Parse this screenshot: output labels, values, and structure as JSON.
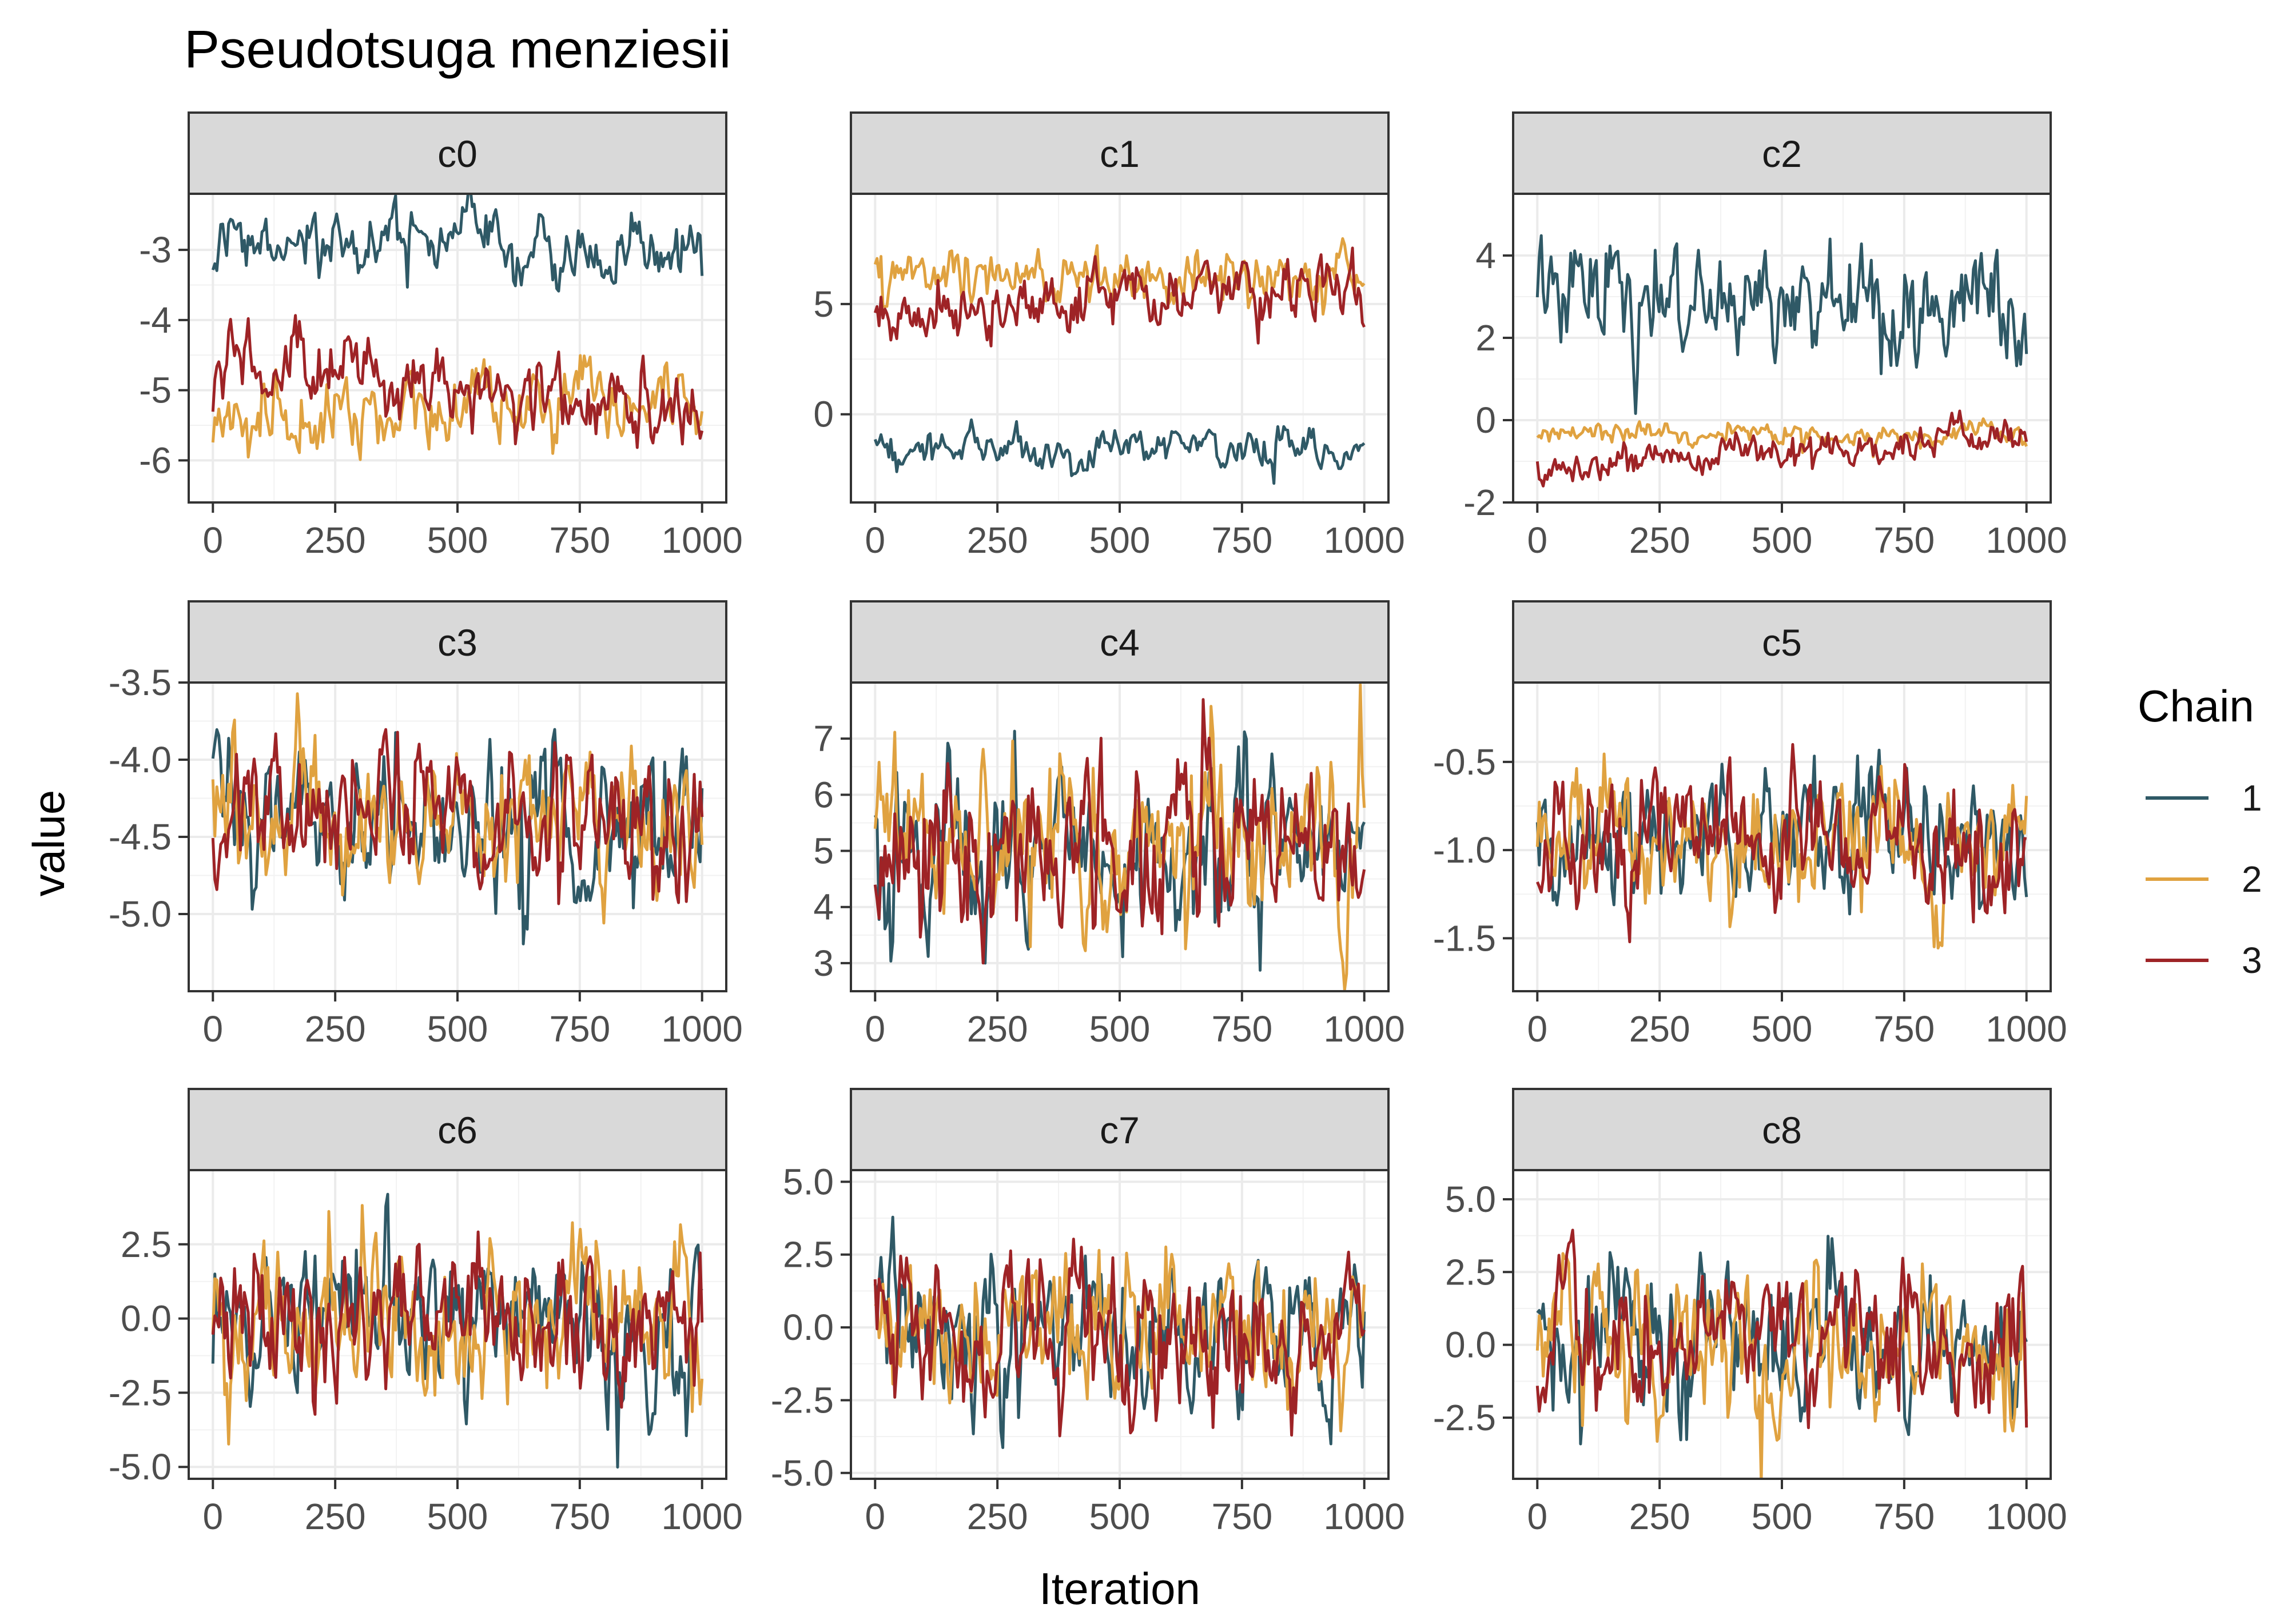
{
  "title": "Pseudotsuga menziesii",
  "x_label": "Iteration",
  "y_label": "value",
  "legend": {
    "title": "Chain",
    "entries": [
      {
        "label": "1",
        "color": "#2F5966"
      },
      {
        "label": "2",
        "color": "#E0A240"
      },
      {
        "label": "3",
        "color": "#9E2326"
      }
    ]
  },
  "chart_data": [
    {
      "type": "line",
      "panel": "c0",
      "x_range": [
        0,
        1000
      ],
      "x_ticks": [
        0,
        250,
        500,
        750,
        1000
      ],
      "ylim": [
        -6.6,
        -2.2
      ],
      "y_ticks": [
        {
          "v": -3,
          "label": "-3"
        },
        {
          "v": -4,
          "label": "-4"
        },
        {
          "v": -5,
          "label": "-5"
        },
        {
          "v": -6,
          "label": "-6"
        }
      ],
      "series": [
        {
          "chain": 1,
          "mean": -3.0,
          "sd": 0.25
        },
        {
          "chain": 2,
          "mean": -5.3,
          "sd": 0.3,
          "trend": [
            -5.4,
            -5.2
          ]
        },
        {
          "chain": 3,
          "mean": -5.0,
          "sd": 0.3,
          "trend": [
            -4.6,
            -5.3
          ]
        }
      ]
    },
    {
      "type": "line",
      "panel": "c1",
      "x_range": [
        0,
        1000
      ],
      "x_ticks": [
        0,
        250,
        500,
        750,
        1000
      ],
      "ylim": [
        -4,
        10
      ],
      "y_ticks": [
        {
          "v": 5,
          "label": "5"
        },
        {
          "v": 0,
          "label": "0"
        }
      ],
      "series": [
        {
          "chain": 1,
          "mean": -1.6,
          "sd": 0.5
        },
        {
          "chain": 2,
          "mean": 6.0,
          "sd": 0.7
        },
        {
          "chain": 3,
          "mean": 5.4,
          "sd": 0.8,
          "trend": [
            4.3,
            6.2
          ]
        }
      ]
    },
    {
      "type": "line",
      "panel": "c2",
      "x_range": [
        0,
        1000
      ],
      "x_ticks": [
        0,
        250,
        500,
        750,
        1000
      ],
      "ylim": [
        -2,
        5.5
      ],
      "y_ticks": [
        {
          "v": 4,
          "label": "4"
        },
        {
          "v": 2,
          "label": "2"
        },
        {
          "v": 0,
          "label": "0"
        },
        {
          "v": -2,
          "label": "-2"
        }
      ],
      "series": [
        {
          "chain": 1,
          "mean": 3.0,
          "sd": 0.8
        },
        {
          "chain": 2,
          "mean": -0.35,
          "sd": 0.15
        },
        {
          "chain": 3,
          "mean": -0.7,
          "sd": 0.25,
          "trend": [
            -1.1,
            -0.4
          ]
        }
      ]
    },
    {
      "type": "line",
      "panel": "c3",
      "x_range": [
        0,
        1000
      ],
      "x_ticks": [
        0,
        250,
        500,
        750,
        1000
      ],
      "ylim": [
        -5.5,
        -3.5
      ],
      "y_ticks": [
        {
          "v": -3.5,
          "label": "-3.5"
        },
        {
          "v": -4.0,
          "label": "-4.0"
        },
        {
          "v": -4.5,
          "label": "-4.5"
        },
        {
          "v": -5.0,
          "label": "-5.0"
        }
      ],
      "series": [
        {
          "chain": 1,
          "mean": -4.35,
          "sd": 0.25
        },
        {
          "chain": 2,
          "mean": -4.35,
          "sd": 0.25
        },
        {
          "chain": 3,
          "mean": -4.35,
          "sd": 0.25
        }
      ]
    },
    {
      "type": "line",
      "panel": "c4",
      "x_range": [
        0,
        1000
      ],
      "x_ticks": [
        0,
        250,
        500,
        750,
        1000
      ],
      "ylim": [
        2.5,
        8.0
      ],
      "y_ticks": [
        {
          "v": 7,
          "label": "7"
        },
        {
          "v": 6,
          "label": "6"
        },
        {
          "v": 5,
          "label": "5"
        },
        {
          "v": 4,
          "label": "4"
        },
        {
          "v": 3,
          "label": "3"
        }
      ],
      "series": [
        {
          "chain": 1,
          "mean": 4.9,
          "sd": 0.8
        },
        {
          "chain": 2,
          "mean": 5.0,
          "sd": 0.8
        },
        {
          "chain": 3,
          "mean": 5.0,
          "sd": 0.8
        }
      ]
    },
    {
      "type": "line",
      "panel": "c5",
      "x_range": [
        0,
        1000
      ],
      "x_ticks": [
        0,
        250,
        500,
        750,
        1000
      ],
      "ylim": [
        -1.8,
        -0.05
      ],
      "y_ticks": [
        {
          "v": -0.5,
          "label": "-0.5"
        },
        {
          "v": -1.0,
          "label": "-1.0"
        },
        {
          "v": -1.5,
          "label": "-1.5"
        }
      ],
      "series": [
        {
          "chain": 1,
          "mean": -0.95,
          "sd": 0.2
        },
        {
          "chain": 2,
          "mean": -0.95,
          "sd": 0.2
        },
        {
          "chain": 3,
          "mean": -0.95,
          "sd": 0.2
        }
      ]
    },
    {
      "type": "line",
      "panel": "c6",
      "x_range": [
        0,
        1000
      ],
      "x_ticks": [
        0,
        250,
        500,
        750,
        1000
      ],
      "ylim": [
        -5.4,
        5.0
      ],
      "y_ticks": [
        {
          "v": 2.5,
          "label": "2.5"
        },
        {
          "v": 0,
          "label": "0.0"
        },
        {
          "v": -2.5,
          "label": "-2.5"
        },
        {
          "v": -5,
          "label": "-5.0"
        }
      ],
      "series": [
        {
          "chain": 1,
          "mean": 0.0,
          "sd": 1.4
        },
        {
          "chain": 2,
          "mean": 0.0,
          "sd": 1.4
        },
        {
          "chain": 3,
          "mean": 0.0,
          "sd": 1.3
        }
      ]
    },
    {
      "type": "line",
      "panel": "c7",
      "x_range": [
        0,
        1000
      ],
      "x_ticks": [
        0,
        250,
        500,
        750,
        1000
      ],
      "ylim": [
        -5.2,
        5.4
      ],
      "y_ticks": [
        {
          "v": 5,
          "label": "5.0"
        },
        {
          "v": 2.5,
          "label": "2.5"
        },
        {
          "v": 0,
          "label": "0.0"
        },
        {
          "v": -2.5,
          "label": "-2.5"
        },
        {
          "v": -5,
          "label": "-5.0"
        }
      ],
      "series": [
        {
          "chain": 1,
          "mean": 0.0,
          "sd": 1.4
        },
        {
          "chain": 2,
          "mean": 0.0,
          "sd": 1.4
        },
        {
          "chain": 3,
          "mean": 0.0,
          "sd": 1.3
        }
      ]
    },
    {
      "type": "line",
      "panel": "c8",
      "x_range": [
        0,
        1000
      ],
      "x_ticks": [
        0,
        250,
        500,
        750,
        1000
      ],
      "ylim": [
        -4.6,
        6.0
      ],
      "y_ticks": [
        {
          "v": 5,
          "label": "5.0"
        },
        {
          "v": 2.5,
          "label": "2.5"
        },
        {
          "v": 0,
          "label": "0.0"
        },
        {
          "v": -2.5,
          "label": "-2.5"
        }
      ],
      "series": [
        {
          "chain": 1,
          "mean": 0.0,
          "sd": 1.4
        },
        {
          "chain": 2,
          "mean": 0.0,
          "sd": 1.4
        },
        {
          "chain": 3,
          "mean": 0.0,
          "sd": 1.3
        }
      ]
    }
  ]
}
